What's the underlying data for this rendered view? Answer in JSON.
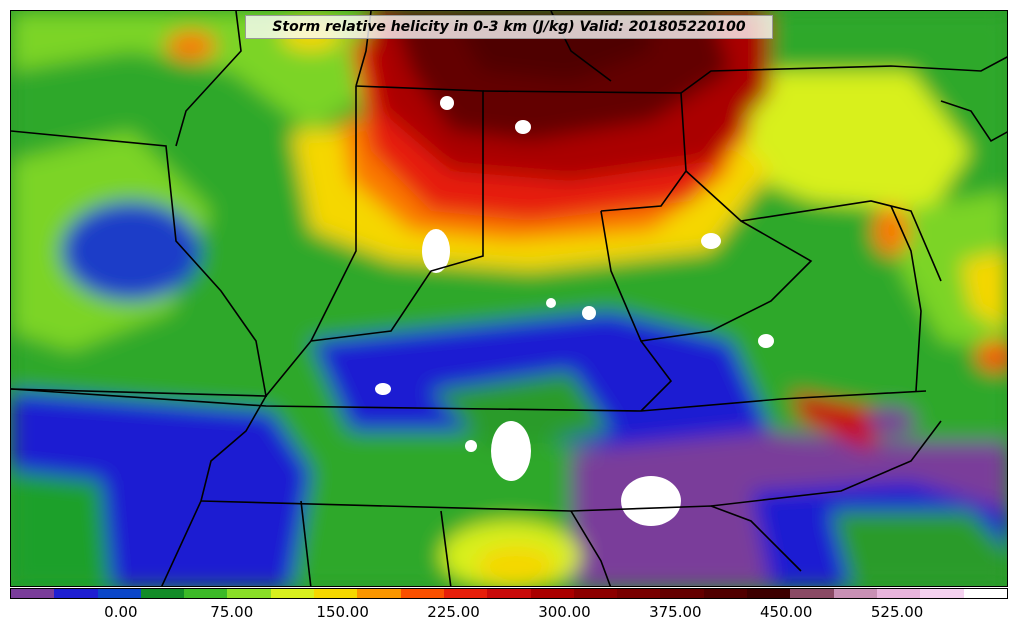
{
  "map": {
    "title": "Storm relative helicity in 0-3 km (J/kg) Valid: 201805220100",
    "legend": {
      "colors": [
        "#7a3c9a",
        "#1e1ed2",
        "#0a46c8",
        "#128c28",
        "#3cba28",
        "#8ade28",
        "#d8f01e",
        "#f5d700",
        "#fa9600",
        "#fa5000",
        "#e61e0a",
        "#c80a0a",
        "#aa0000",
        "#8c0000",
        "#780000",
        "#640000",
        "#500000",
        "#3c0000",
        "#8a4a64",
        "#c890b4",
        "#e8b4dc",
        "#f5d2f0",
        "#ffffff"
      ],
      "tick_labels": [
        "0.00",
        "75.00",
        "150.00",
        "225.00",
        "300.00",
        "375.00",
        "450.00",
        "525.00"
      ],
      "tick_values": [
        0,
        75,
        150,
        225,
        300,
        375,
        450,
        525
      ],
      "range": [
        -75,
        600
      ]
    }
  }
}
